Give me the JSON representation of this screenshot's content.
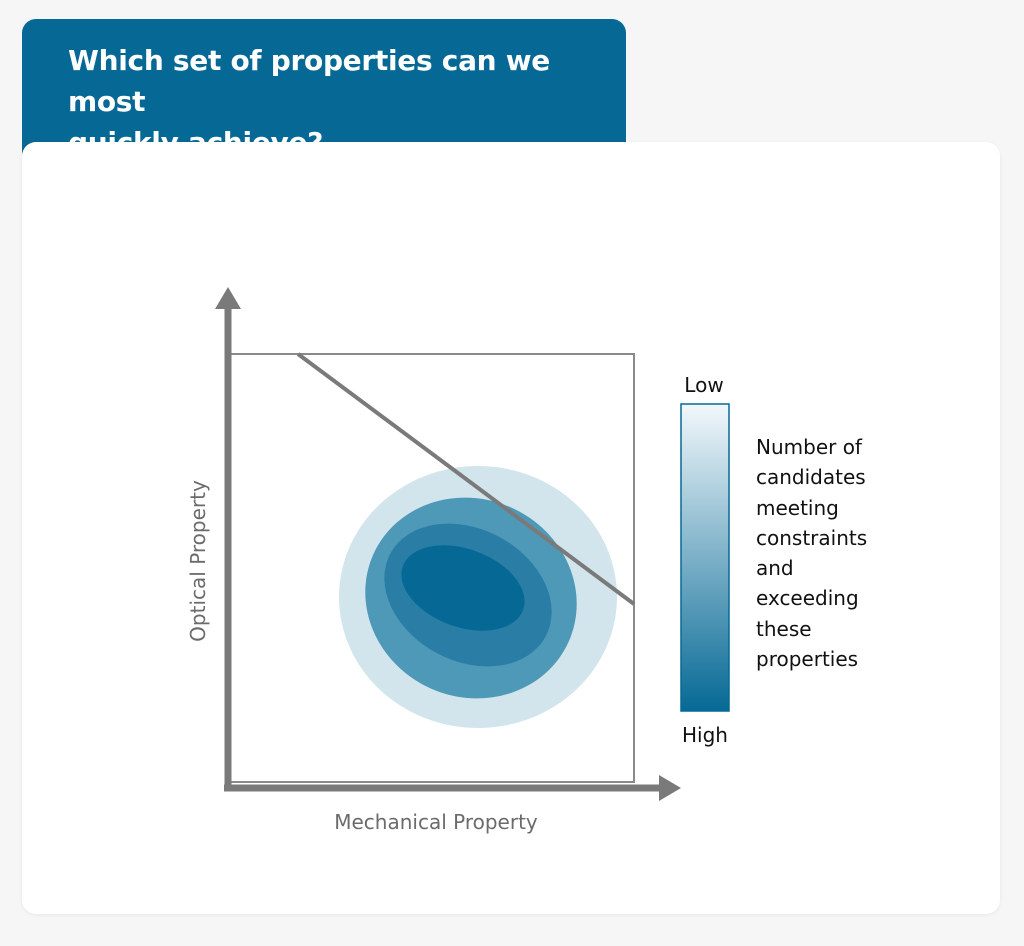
{
  "title": {
    "lines": [
      "Which set of properties can we most",
      "quickly achieve?"
    ]
  },
  "diagram": {
    "x_axis_label": "Mechanical Property",
    "y_axis_label": "Optical Property",
    "legend": {
      "low_label": "Low",
      "high_label": "High",
      "description_lines": [
        "Number of",
        "candidates",
        "meeting",
        "constraints",
        "and",
        "exceeding",
        "these",
        "properties"
      ]
    }
  },
  "colors": {
    "header_blue": "#066995",
    "axis_gray": "#7a7a7a",
    "region_light": "#d3e5ec",
    "region_mid": "#4f99b8",
    "region_dark": "#2a7ea6",
    "region_core": "#066995",
    "gradient_low": "#f2f8fb",
    "gradient_high": "#066995"
  }
}
